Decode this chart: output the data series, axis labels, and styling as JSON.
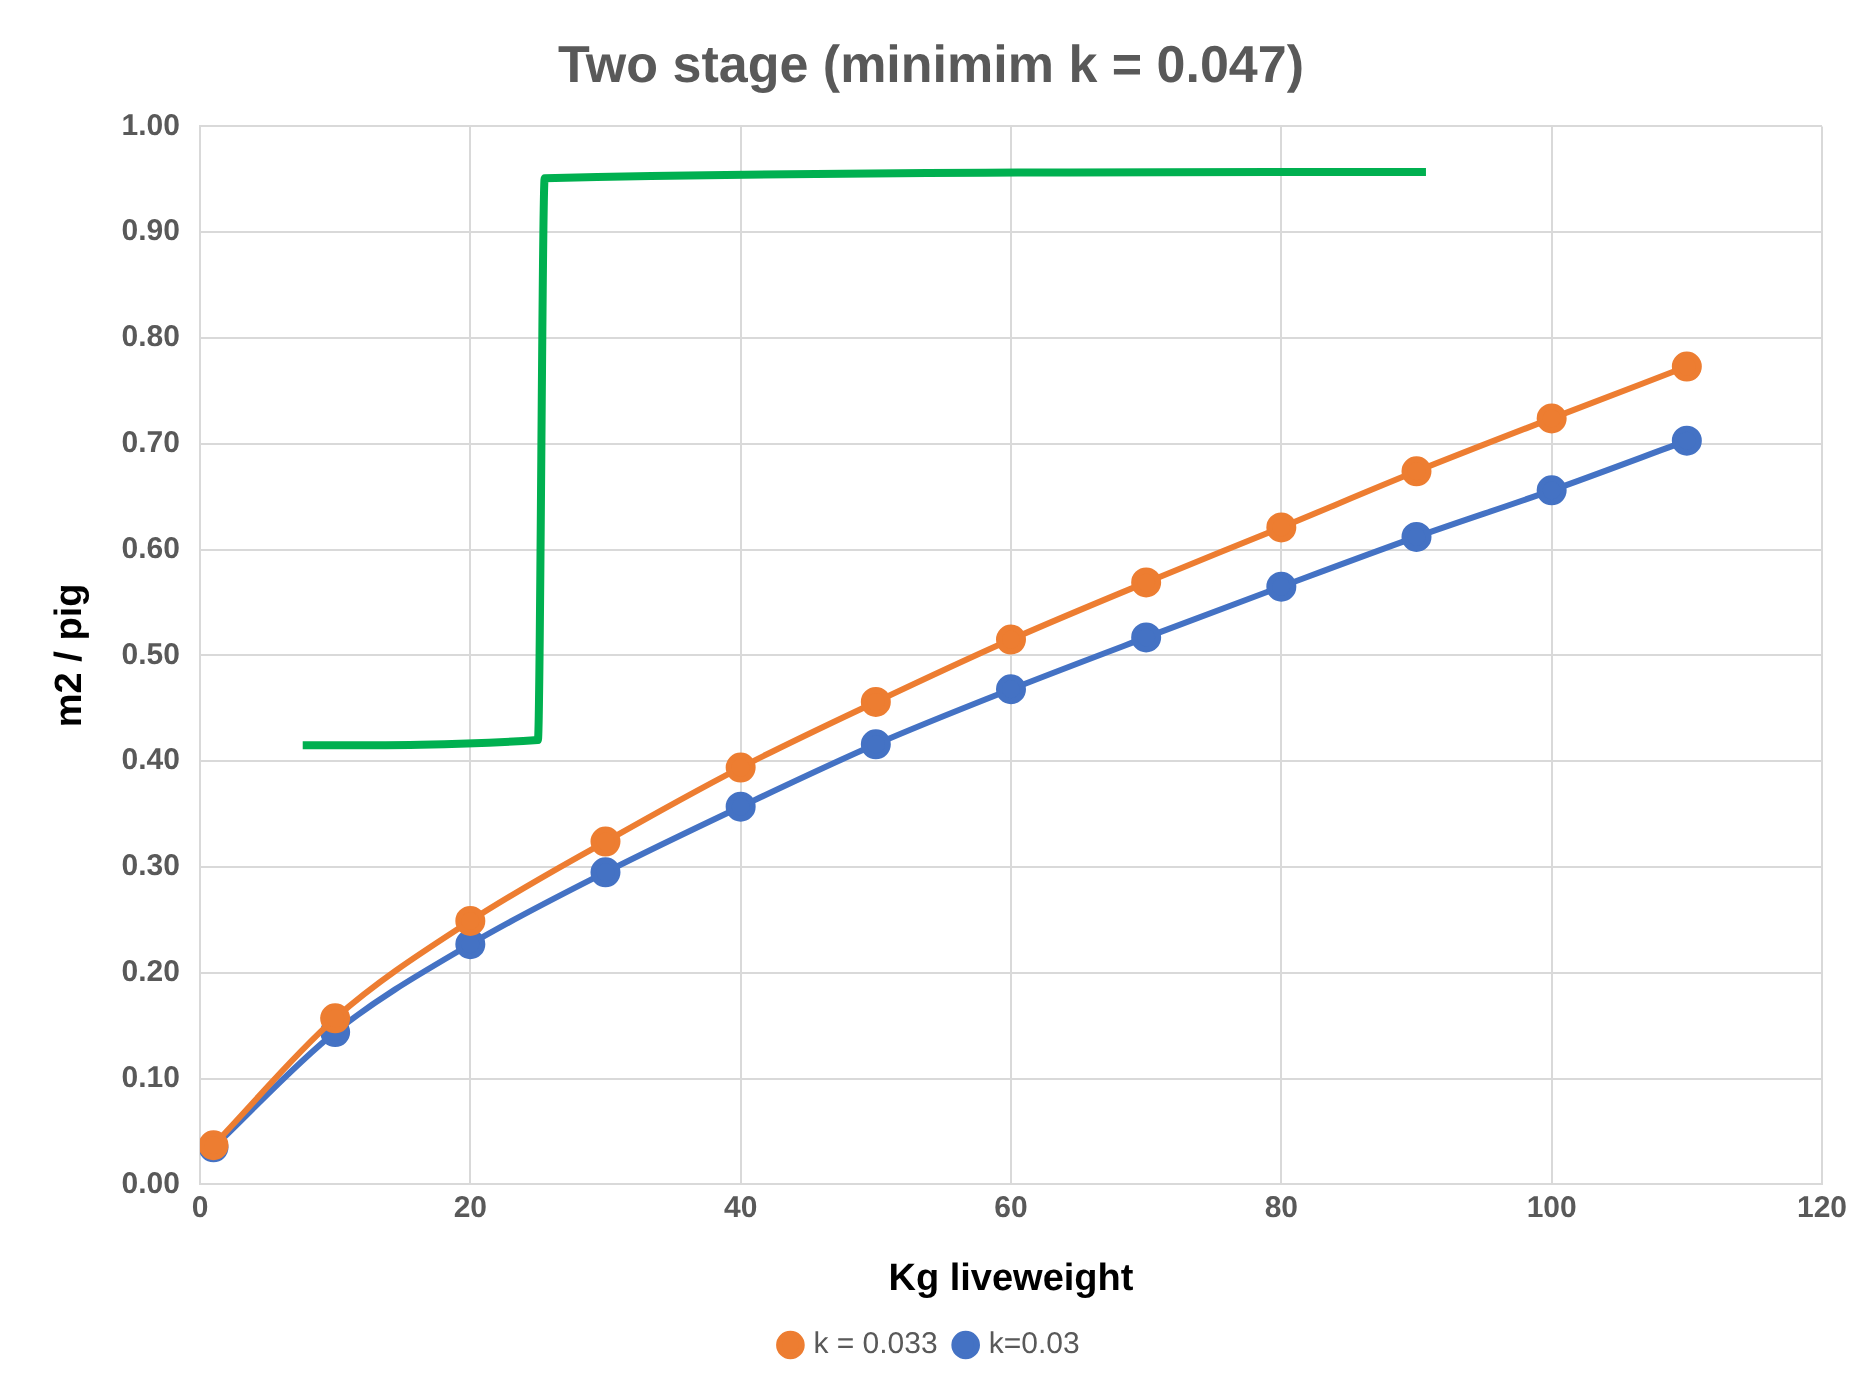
{
  "chart_data": {
    "type": "line",
    "title": "Two stage (minimim k = 0.047)",
    "xlabel": "Kg liveweight",
    "ylabel": "m2 / pig",
    "x": [
      1,
      10,
      20,
      30,
      40,
      50,
      60,
      70,
      80,
      90,
      100,
      110
    ],
    "series": [
      {
        "name": "k=0.03",
        "color": "#4472c4",
        "marker": "circle",
        "values": [
          0.035,
          0.144,
          0.227,
          0.295,
          0.357,
          0.416,
          0.468,
          0.517,
          0.565,
          0.612,
          0.656,
          0.703
        ]
      },
      {
        "name": "k = 0.033",
        "color": "#ed7d31",
        "marker": "circle",
        "values": [
          0.037,
          0.157,
          0.249,
          0.324,
          0.394,
          0.456,
          0.515,
          0.569,
          0.621,
          0.674,
          0.724,
          0.773
        ]
      },
      {
        "color": "#00b050",
        "marker": "none",
        "x": [
          7.6,
          25,
          25.5,
          90.7
        ],
        "values": [
          0.415,
          0.42,
          0.951,
          0.957
        ]
      }
    ],
    "xlim": [
      0,
      120
    ],
    "xticks": [
      0,
      20,
      40,
      60,
      80,
      100,
      120
    ],
    "ylim": [
      0,
      1
    ],
    "yticks": [
      {
        "value": 0,
        "label": "0.00"
      },
      {
        "value": 0.1,
        "label": "0.10"
      },
      {
        "value": 0.2,
        "label": "0.20"
      },
      {
        "value": 0.3,
        "label": "0.30"
      },
      {
        "value": 0.4,
        "label": "0.40"
      },
      {
        "value": 0.5,
        "label": "0.50"
      },
      {
        "value": 0.6,
        "label": "0.60"
      },
      {
        "value": 0.7,
        "label": "0.70"
      },
      {
        "value": 0.8,
        "label": "0.80"
      },
      {
        "value": 0.9,
        "label": "0.90"
      },
      {
        "value": 1,
        "label": "1.00"
      }
    ],
    "grid": true,
    "legend": "bottom",
    "line_style": "solid"
  }
}
